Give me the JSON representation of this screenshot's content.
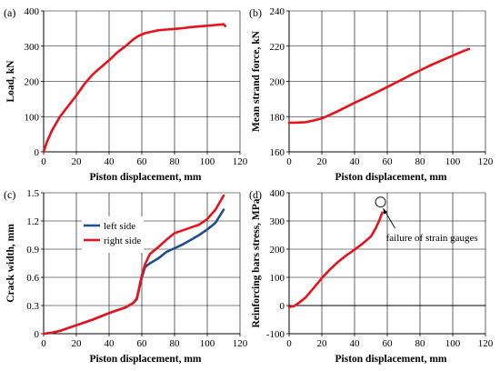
{
  "colors": {
    "red": "#e8121c",
    "blue": "#1f4e8c",
    "grid": "#000000"
  },
  "chart_data": [
    {
      "type": "line",
      "panel": "(a)",
      "xlabel": "Piston displacement, mm",
      "ylabel": "Load, kN",
      "xlim": [
        0,
        120
      ],
      "ylim": [
        0,
        400
      ],
      "xticks": [
        0,
        20,
        40,
        60,
        80,
        100,
        120
      ],
      "yticks": [
        0,
        100,
        200,
        300,
        400
      ],
      "grid": true,
      "series": [
        {
          "color": "#e8121c",
          "x": [
            0,
            2,
            5,
            10,
            15,
            20,
            25,
            30,
            35,
            40,
            45,
            50,
            55,
            58,
            62,
            66,
            70,
            75,
            80,
            85,
            90,
            95,
            100,
            105,
            110,
            111
          ],
          "y": [
            0,
            28,
            60,
            100,
            130,
            160,
            193,
            220,
            240,
            260,
            282,
            300,
            320,
            329,
            337,
            341,
            345,
            347,
            349,
            351,
            354,
            356,
            358,
            360,
            362,
            357
          ]
        }
      ]
    },
    {
      "type": "line",
      "panel": "(b)",
      "xlabel": "Piston displacement, mm",
      "ylabel": "Mean strand force, kN",
      "xlim": [
        0,
        120
      ],
      "ylim": [
        160,
        240
      ],
      "xticks": [
        0,
        20,
        40,
        60,
        80,
        100,
        120
      ],
      "yticks": [
        160,
        180,
        200,
        220,
        240
      ],
      "grid": true,
      "series": [
        {
          "color": "#e8121c",
          "x": [
            0,
            5,
            10,
            15,
            20,
            25,
            30,
            35,
            40,
            45,
            50,
            55,
            60,
            65,
            70,
            75,
            80,
            85,
            90,
            95,
            100,
            105,
            110
          ],
          "y": [
            176.5,
            176.6,
            176.8,
            177.8,
            179,
            181,
            183.2,
            185.5,
            187.8,
            190,
            192.2,
            194.5,
            196.8,
            199.2,
            201.5,
            204,
            206.2,
            208.5,
            210.6,
            212.6,
            214.6,
            216.6,
            218.4
          ]
        }
      ]
    },
    {
      "type": "line",
      "panel": "(c)",
      "xlabel": "Piston displacement, mm",
      "ylabel": "Crack width, mm",
      "xlim": [
        0,
        120
      ],
      "ylim": [
        0,
        1.5
      ],
      "xticks": [
        0,
        20,
        40,
        60,
        80,
        100,
        120
      ],
      "yticks": [
        0,
        0.3,
        0.6,
        0.9,
        1.2,
        1.5
      ],
      "ytick_labels": [
        "0",
        "0.3",
        "0.6",
        "0.9",
        "1.2",
        "1.5"
      ],
      "grid": true,
      "legend": "upper-left",
      "series": [
        {
          "name": "left side",
          "color": "#1f4e8c",
          "x": [
            0,
            5,
            10,
            20,
            30,
            40,
            50,
            55,
            57,
            58,
            60,
            62,
            65,
            70,
            75,
            80,
            85,
            90,
            95,
            100,
            105,
            110
          ],
          "y": [
            0,
            0.01,
            0.03,
            0.09,
            0.15,
            0.22,
            0.28,
            0.33,
            0.37,
            0.45,
            0.6,
            0.71,
            0.75,
            0.8,
            0.87,
            0.91,
            0.95,
            1.0,
            1.05,
            1.11,
            1.18,
            1.32
          ]
        },
        {
          "name": "right side",
          "color": "#e8121c",
          "x": [
            0,
            5,
            10,
            20,
            30,
            40,
            50,
            55,
            57,
            58,
            60,
            62,
            65,
            70,
            75,
            80,
            85,
            90,
            95,
            100,
            105,
            110
          ],
          "y": [
            0,
            0.01,
            0.03,
            0.09,
            0.15,
            0.22,
            0.28,
            0.33,
            0.38,
            0.46,
            0.62,
            0.74,
            0.85,
            0.92,
            1.0,
            1.07,
            1.1,
            1.13,
            1.16,
            1.22,
            1.32,
            1.47
          ]
        }
      ]
    },
    {
      "type": "line",
      "panel": "(d)",
      "xlabel": "Piston displacement, mm",
      "ylabel": "Reinforcing bars stress, MPa",
      "xlim": [
        0,
        120
      ],
      "ylim": [
        -100,
        400
      ],
      "xticks": [
        0,
        20,
        40,
        60,
        80,
        100,
        120
      ],
      "yticks": [
        -100,
        0,
        100,
        200,
        300,
        400
      ],
      "grid": true,
      "zero_line": {
        "y": 0,
        "x_end": 120
      },
      "annotation": {
        "text": "failure of strain gauges",
        "x": 57,
        "y": 335
      },
      "series": [
        {
          "color": "#e8121c",
          "x": [
            0,
            3,
            5,
            10,
            15,
            20,
            25,
            30,
            35,
            40,
            45,
            50,
            53,
            55,
            57
          ],
          "y": [
            -5,
            -2,
            5,
            28,
            62,
            97,
            128,
            155,
            178,
            198,
            220,
            245,
            275,
            300,
            330
          ]
        }
      ]
    }
  ]
}
